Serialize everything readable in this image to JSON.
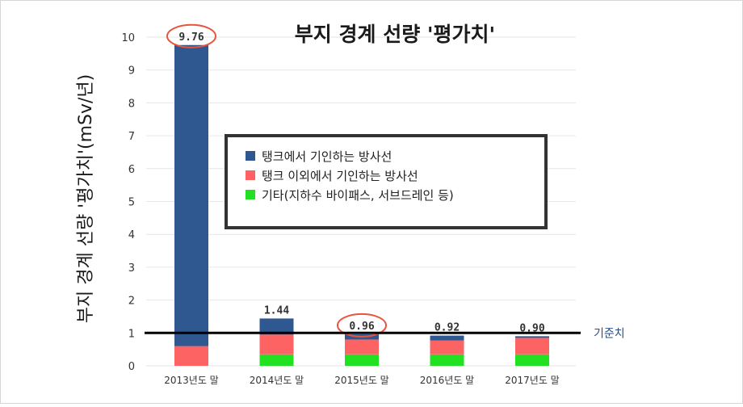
{
  "chart_data": {
    "type": "bar",
    "stacked": true,
    "title": "부지 경계 선량 '평가치'",
    "ylabel": "부지 경계 선량 '평가치'(mSv/년)",
    "xlabel": "",
    "ylim": [
      0,
      10
    ],
    "yticks": [
      "0",
      "1",
      "2",
      "3",
      "4",
      "5",
      "6",
      "7",
      "8",
      "9",
      "10"
    ],
    "grid": true,
    "categories": [
      "2013년도 말",
      "2014년도 말",
      "2015년도 말",
      "2016년도 말",
      "2017년도 말"
    ],
    "totals": [
      "9.76",
      "1.44",
      "0.96",
      "0.92",
      "0.90"
    ],
    "highlighted": [
      0,
      2
    ],
    "series": [
      {
        "name": "기타(지하수 바이패스, 서브드레인 등)",
        "color": "#22e022",
        "values": [
          0,
          0.35,
          0.35,
          0.35,
          0.35
        ]
      },
      {
        "name": "탱크 이외에서 기인하는 방사선",
        "color": "#fd6363",
        "values": [
          0.6,
          0.6,
          0.45,
          0.42,
          0.5
        ]
      },
      {
        "name": "탱크에서 기인하는 방사선",
        "color": "#2f5891",
        "values": [
          9.16,
          0.49,
          0.16,
          0.15,
          0.05
        ]
      }
    ],
    "legend_order": [
      2,
      1,
      0
    ],
    "legend_highlight_color": "#c00000",
    "highlight_color": "#e8553f",
    "reference_line": {
      "value": 1,
      "label": "기준치",
      "color": "#000000"
    },
    "legend_position": "center"
  }
}
